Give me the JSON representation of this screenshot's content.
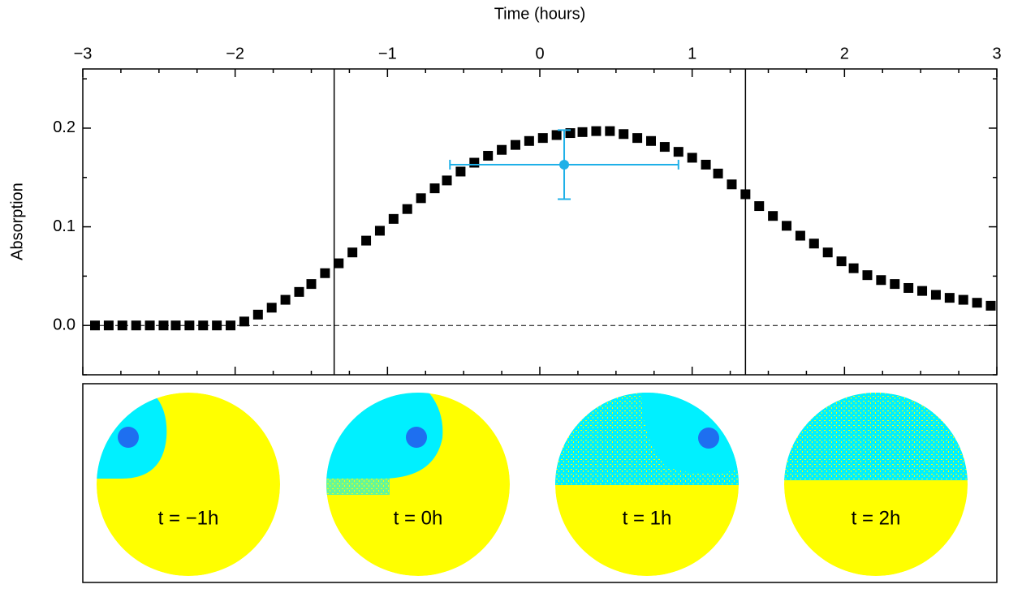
{
  "chart_data": {
    "type": "scatter",
    "xlabel": "Time (hours)",
    "ylabel": "Absorption",
    "xlim": [
      -3,
      3
    ],
    "ylim": [
      -0.05,
      0.26
    ],
    "xticks": [
      {
        "value": -3,
        "label": "−3"
      },
      {
        "value": -2,
        "label": "−2"
      },
      {
        "value": -1,
        "label": "−1"
      },
      0,
      1,
      2,
      3
    ],
    "yticks": [
      {
        "value": 0,
        "label": "0.0"
      },
      0.1,
      0.2
    ],
    "xminorticks": [
      -2.75,
      -2.5,
      -2.25,
      -1.75,
      -1.5,
      -1.25,
      -0.75,
      -0.5,
      -0.25,
      0.25,
      0.5,
      0.75,
      1.25,
      1.5,
      1.75,
      2.25,
      2.5,
      2.75
    ],
    "yminorticks": [
      -0.05,
      0.05,
      0.15,
      0.25
    ],
    "series": [
      {
        "color": "#000000",
        "x": [
          -2.92,
          -2.83,
          -2.74,
          -2.65,
          -2.56,
          -2.47,
          -2.39,
          -2.3,
          -2.21,
          -2.12,
          -2.03,
          -1.94,
          -1.85,
          -1.76,
          -1.67,
          -1.58,
          -1.5,
          -1.41,
          -1.32,
          -1.23,
          -1.14,
          -1.05,
          -0.96,
          -0.87,
          -0.78,
          -0.69,
          -0.61,
          -0.52,
          -0.43,
          -0.34,
          -0.25,
          -0.16,
          -0.07,
          0.02,
          0.11,
          0.2,
          0.28,
          0.37,
          0.46,
          0.55,
          0.64,
          0.73,
          0.82,
          0.91,
          1.0,
          1.09,
          1.17,
          1.26,
          1.35,
          1.44,
          1.53,
          1.62,
          1.71,
          1.8,
          1.89,
          1.98,
          2.06,
          2.15,
          2.24,
          2.33,
          2.42,
          2.51,
          2.6,
          2.69,
          2.78,
          2.87,
          2.96
        ],
        "values": [
          0,
          0,
          0,
          0,
          0,
          0,
          0,
          0,
          0,
          0,
          0,
          0.004,
          0.011,
          0.018,
          0.026,
          0.034,
          0.042,
          0.053,
          0.063,
          0.074,
          0.086,
          0.096,
          0.108,
          0.118,
          0.129,
          0.139,
          0.147,
          0.156,
          0.165,
          0.172,
          0.178,
          0.183,
          0.187,
          0.19,
          0.193,
          0.195,
          0.196,
          0.197,
          0.197,
          0.194,
          0.19,
          0.187,
          0.181,
          0.176,
          0.17,
          0.163,
          0.154,
          0.143,
          0.133,
          0.121,
          0.111,
          0.101,
          0.091,
          0.083,
          0.074,
          0.065,
          0.058,
          0.051,
          0.046,
          0.042,
          0.038,
          0.035,
          0.031,
          0.028,
          0.026,
          0.023,
          0.02
        ]
      }
    ],
    "error_point": {
      "color": "#1fb0e8",
      "x": 0.16,
      "y": 0.163,
      "xerr": 0.75,
      "yerr": 0.035
    },
    "vlines": [
      -1.35,
      1.35
    ],
    "hline": 0,
    "panel_labels": [
      "t = −1h",
      "t = 0h",
      "t = 1h",
      "t = 2h"
    ]
  }
}
